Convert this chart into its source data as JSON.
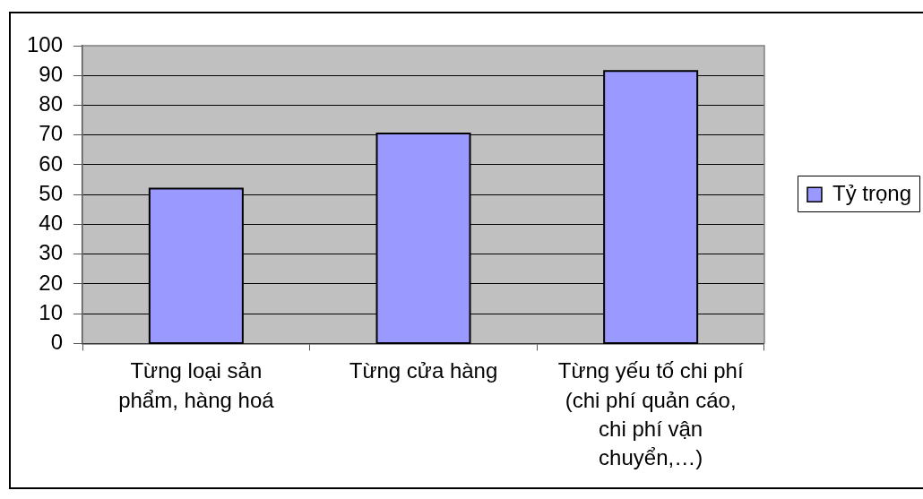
{
  "chart_data": {
    "type": "bar",
    "categories": [
      "Từng loại sản phẩm, hàng hoá",
      "Từng cửa hàng",
      "Từng yếu tố chi phí (chi phí quản cáo, chi phí vận chuyển,…)"
    ],
    "series": [
      {
        "name": "Tỷ trọng",
        "color": "#9999ff",
        "values": [
          52,
          70.5,
          91.5
        ]
      }
    ],
    "ylim": [
      0,
      100
    ],
    "yticks": [
      0,
      10,
      20,
      30,
      40,
      50,
      60,
      70,
      80,
      90,
      100
    ],
    "grid": "y",
    "legend": "right"
  }
}
